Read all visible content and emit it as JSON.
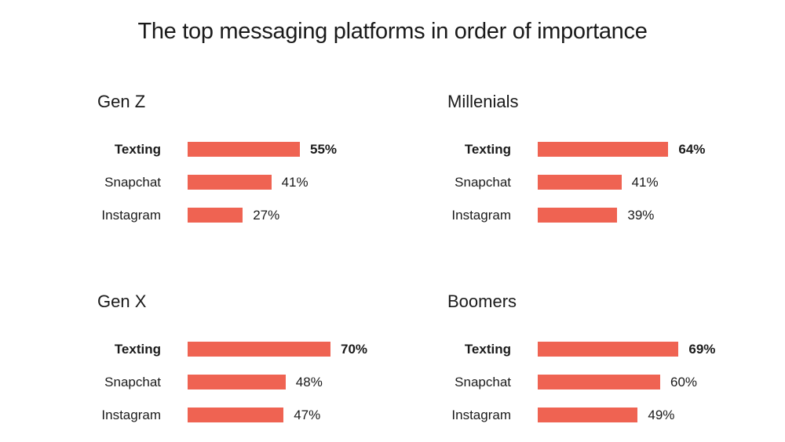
{
  "chart_data": {
    "type": "bar",
    "title": "The top messaging platforms in order of importance",
    "categories": [
      "Texting",
      "Snapchat",
      "Instagram"
    ],
    "unit": "%",
    "bar_color": "#EF6352",
    "panels": [
      {
        "name": "Gen Z",
        "values": [
          55,
          41,
          27
        ],
        "labels": [
          "55%",
          "41%",
          "27%"
        ]
      },
      {
        "name": "Millenials",
        "values": [
          64,
          41,
          39
        ],
        "labels": [
          "64%",
          "41%",
          "39%"
        ]
      },
      {
        "name": "Gen X",
        "values": [
          70,
          48,
          47
        ],
        "labels": [
          "70%",
          "48%",
          "47%"
        ]
      },
      {
        "name": "Boomers",
        "values": [
          69,
          60,
          49
        ],
        "labels": [
          "69%",
          "60%",
          "49%"
        ]
      }
    ]
  }
}
